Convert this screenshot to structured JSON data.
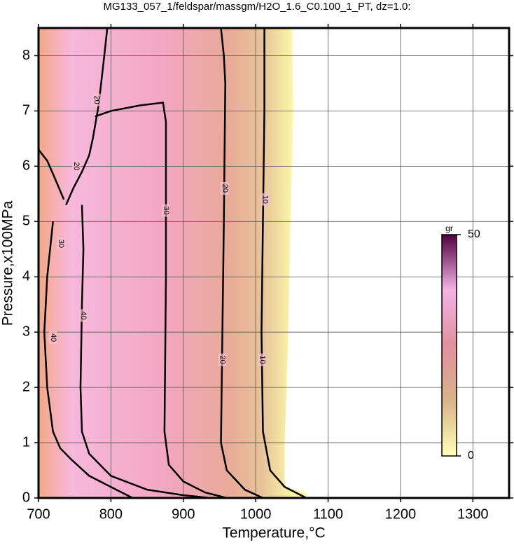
{
  "chart_data": {
    "type": "contour",
    "title": "MG133_057_1/feldspar/massgm/H2O_1.6_C0.100_1_PT, dz=1.0:",
    "x_label": "Temperature,°C",
    "y_label": "Pressure,x100MPa",
    "xlim": [
      700,
      1350
    ],
    "ylim": [
      0,
      8.5
    ],
    "xticks": [
      700,
      800,
      900,
      1000,
      1100,
      1200,
      1300
    ],
    "yticks": [
      0,
      1,
      2,
      3,
      4,
      5,
      6,
      7,
      8
    ],
    "grid": true,
    "field": {
      "x": [
        700,
        1050,
        1052,
        1048,
        1045,
        1040,
        1040,
        1042,
        1070,
        1070,
        700
      ],
      "y": [
        8.5,
        8.5,
        7,
        5,
        3,
        1,
        0.3,
        0.2,
        0.1,
        0,
        0
      ],
      "stops": [
        {
          "x": 700,
          "color": "#f4a886"
        },
        {
          "x": 745,
          "color": "#f7b8dc"
        },
        {
          "x": 880,
          "color": "#f2a6c0"
        },
        {
          "x": 960,
          "color": "#e8aa98"
        },
        {
          "x": 1010,
          "color": "#e8c49a"
        },
        {
          "x": 1050,
          "color": "#fbf6a8"
        }
      ]
    },
    "contours": [
      {
        "level": 10,
        "x": [
          1012,
          1012,
          1010,
          1008,
          1010,
          1020,
          1040,
          1070
        ],
        "y": [
          8.5,
          7,
          5,
          3,
          1.2,
          0.5,
          0.2,
          0
        ]
      },
      {
        "level": 20,
        "x": [
          952,
          956,
          958,
          956,
          953,
          952,
          960,
          985,
          1010
        ],
        "y": [
          8.5,
          8.0,
          7.5,
          5,
          2,
          1,
          0.5,
          0.15,
          0
        ]
      },
      {
        "level": 30,
        "x": [
          778,
          800,
          840,
          872,
          876,
          876,
          874,
          880,
          900,
          930,
          960
        ],
        "y": [
          6.9,
          7.0,
          7.1,
          7.15,
          6.8,
          4,
          1.2,
          0.6,
          0.3,
          0.1,
          0
        ]
      },
      {
        "level": 40,
        "x": [
          760,
          762,
          760,
          758,
          760,
          770,
          800,
          850,
          900,
          937
        ],
        "y": [
          5.3,
          4.5,
          3.5,
          2,
          1.2,
          0.8,
          0.4,
          0.15,
          0.05,
          0
        ]
      },
      {
        "level": 40,
        "x": [
          720,
          712,
          708,
          712,
          720,
          730,
          745,
          770,
          800,
          830
        ],
        "y": [
          5.0,
          4,
          3,
          2,
          1.2,
          0.9,
          0.7,
          0.4,
          0.2,
          0
        ]
      },
      {
        "level": 20,
        "x": [
          795,
          790,
          783,
          775,
          770,
          760,
          748,
          738
        ],
        "y": [
          8.5,
          7.9,
          7.1,
          6.5,
          6.2,
          5.9,
          5.6,
          5.3
        ]
      },
      {
        "level": 30,
        "x": [
          700,
          712,
          722,
          735
        ],
        "y": [
          6.3,
          6.1,
          5.8,
          5.4
        ]
      }
    ],
    "contour_labels": [
      {
        "value": 10,
        "x": 1013,
        "y": 5.4
      },
      {
        "value": 10,
        "x": 1009,
        "y": 2.5
      },
      {
        "value": 20,
        "x": 957,
        "y": 5.6
      },
      {
        "value": 20,
        "x": 954,
        "y": 2.5
      },
      {
        "value": 30,
        "x": 876,
        "y": 5.2
      },
      {
        "value": 40,
        "x": 762,
        "y": 3.3
      },
      {
        "value": 30,
        "x": 731,
        "y": 4.6
      },
      {
        "value": 40,
        "x": 720,
        "y": 2.9
      },
      {
        "value": 20,
        "x": 780,
        "y": 7.2
      },
      {
        "value": 20,
        "x": 752,
        "y": 6.0
      }
    ],
    "colorbar": {
      "label": "gr",
      "lim": [
        0,
        50
      ],
      "ticks": [
        0,
        50
      ],
      "colors": [
        "#ffffb8",
        "#d8b48a",
        "#e0909e",
        "#f2b4e4",
        "#500040"
      ]
    }
  }
}
